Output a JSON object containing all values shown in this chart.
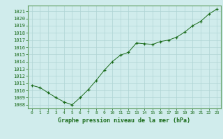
{
  "x": [
    0,
    1,
    2,
    3,
    4,
    5,
    6,
    7,
    8,
    9,
    10,
    11,
    12,
    13,
    14,
    15,
    16,
    17,
    18,
    19,
    20,
    21,
    22,
    23
  ],
  "y": [
    1010.7,
    1010.4,
    1009.7,
    1009.0,
    1008.4,
    1008.0,
    1009.0,
    1010.1,
    1011.4,
    1012.8,
    1014.0,
    1014.9,
    1015.3,
    1016.6,
    1016.5,
    1016.4,
    1016.8,
    1017.0,
    1017.4,
    1018.1,
    1019.0,
    1019.6,
    1020.6,
    1021.3
  ],
  "line_color": "#1a6b1a",
  "marker": "+",
  "marker_color": "#1a6b1a",
  "bg_color": "#d0ecec",
  "grid_color": "#b0d4d4",
  "xlabel": "Graphe pression niveau de la mer (hPa)",
  "xlabel_color": "#1a6b1a",
  "tick_color": "#1a6b1a",
  "ylim": [
    1007.5,
    1021.8
  ],
  "yticks": [
    1008,
    1009,
    1010,
    1011,
    1012,
    1013,
    1014,
    1015,
    1016,
    1017,
    1018,
    1019,
    1020,
    1021
  ],
  "xticks": [
    0,
    1,
    2,
    3,
    4,
    5,
    6,
    7,
    8,
    9,
    10,
    11,
    12,
    13,
    14,
    15,
    16,
    17,
    18,
    19,
    20,
    21,
    22,
    23
  ],
  "xtick_labels": [
    "0",
    "1",
    "2",
    "3",
    "4",
    "5",
    "6",
    "7",
    "8",
    "9",
    "10",
    "11",
    "12",
    "13",
    "14",
    "15",
    "16",
    "17",
    "18",
    "19",
    "20",
    "21",
    "22",
    "23"
  ]
}
